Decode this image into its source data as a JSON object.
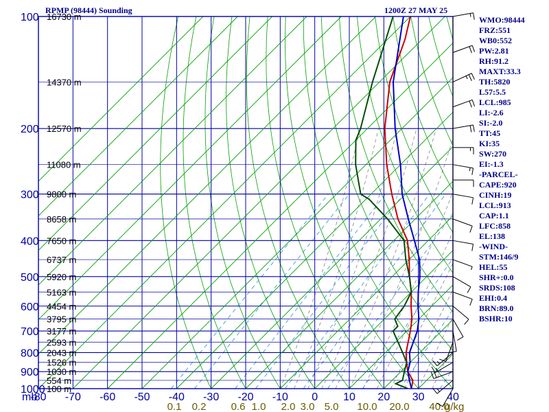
{
  "header": {
    "station": "RPMP (98444) Sounding",
    "time": "1200Z 27 MAY 25"
  },
  "stats": [
    "WMO:98444",
    "FRZ:551",
    "WB0:552",
    "PW:2.81",
    "RH:91.2",
    "MAXT:33.3",
    "TH:5820",
    "L57:5.5",
    "LCL:985",
    "LI:-2.6",
    "SI:-2.0",
    "TT:45",
    "KI:35",
    "SW:270",
    "EI:-1.3",
    "-PARCEL-",
    "CAPE:920",
    "CINH:19",
    "LCL:913",
    "CAP:1.1",
    "LFC:858",
    "EL:138",
    "-WIND-",
    "STM:146/9",
    "HEL:55",
    "SHR+:0.0",
    "SRDS:108",
    "EHI:0.4",
    "BRN:89.0",
    "BSHR:10"
  ],
  "colors": {
    "grid": "#0000aa",
    "dry_adiabat": "#00a000",
    "moist_adiabat": "#1a1a1a",
    "mixing_ratio": "#2a8fd0",
    "temperature": "#cc0000",
    "dewpoint": "#004d00",
    "parcel": "#0000cc",
    "mixing_label": "#6b5a00",
    "wind": "#000000"
  },
  "chart_data": {
    "type": "skew-t",
    "xlim": [
      -80,
      40
    ],
    "xlabel": "mb",
    "pressure_axis": [
      100,
      1000
    ],
    "pressure_ticks": [
      "100",
      "200",
      "300",
      "400",
      "500",
      "600",
      "700",
      "800",
      "900",
      "1000"
    ],
    "temperature_ticks": [
      "-80",
      "-70",
      "-60",
      "-50",
      "-40",
      "-30",
      "-20",
      "-10",
      "0",
      "10",
      "20",
      "30",
      "40"
    ],
    "mixing_ratio_labels": [
      "0.1",
      "0.2",
      "0.6",
      "1.0",
      "2.0",
      "3.0",
      "5.0",
      "10.0",
      "20.0",
      "40.0"
    ],
    "mixing_ratio_unit": "g/kg",
    "height_labels": [
      {
        "p": 100,
        "text": "16730 m"
      },
      {
        "p": 150,
        "text": "14370 m"
      },
      {
        "p": 200,
        "text": "12570 m"
      },
      {
        "p": 250,
        "text": "11080 m"
      },
      {
        "p": 300,
        "text": "9800 m"
      },
      {
        "p": 350,
        "text": "8658 m"
      },
      {
        "p": 400,
        "text": "7650 m"
      },
      {
        "p": 450,
        "text": "6737 m"
      },
      {
        "p": 500,
        "text": "5920 m"
      },
      {
        "p": 550,
        "text": "5163 m"
      },
      {
        "p": 600,
        "text": "4454 m"
      },
      {
        "p": 650,
        "text": "3795 m"
      },
      {
        "p": 700,
        "text": "3177 m"
      },
      {
        "p": 750,
        "text": "2593 m"
      },
      {
        "p": 800,
        "text": "2043 m"
      },
      {
        "p": 850,
        "text": "1526 m"
      },
      {
        "p": 900,
        "text": "1030 m"
      },
      {
        "p": 950,
        "text": "554 m"
      },
      {
        "p": 1000,
        "text": "100 m"
      }
    ],
    "series": [
      {
        "key": "temperature",
        "points": [
          [
            100,
            -80
          ],
          [
            115,
            -75
          ],
          [
            150,
            -67
          ],
          [
            200,
            -55
          ],
          [
            250,
            -44
          ],
          [
            300,
            -34
          ],
          [
            350,
            -25
          ],
          [
            400,
            -16
          ],
          [
            450,
            -10
          ],
          [
            500,
            -5
          ],
          [
            550,
            0
          ],
          [
            600,
            4
          ],
          [
            650,
            8
          ],
          [
            700,
            11
          ],
          [
            800,
            16
          ],
          [
            850,
            19
          ],
          [
            900,
            22
          ],
          [
            950,
            26
          ],
          [
            1000,
            28
          ]
        ]
      },
      {
        "key": "dewpoint",
        "points": [
          [
            100,
            -85
          ],
          [
            150,
            -72
          ],
          [
            200,
            -62
          ],
          [
            215,
            -60
          ],
          [
            250,
            -53
          ],
          [
            300,
            -43
          ],
          [
            310,
            -39
          ],
          [
            350,
            -28
          ],
          [
            400,
            -17
          ],
          [
            450,
            -11
          ],
          [
            500,
            -5
          ],
          [
            550,
            0
          ],
          [
            600,
            2
          ],
          [
            650,
            3
          ],
          [
            680,
            6
          ],
          [
            700,
            6
          ],
          [
            800,
            15
          ],
          [
            850,
            19
          ],
          [
            900,
            21
          ],
          [
            950,
            23
          ],
          [
            970,
            22
          ],
          [
            1000,
            27
          ]
        ]
      },
      {
        "key": "parcel",
        "points": [
          [
            100,
            -82
          ],
          [
            150,
            -66
          ],
          [
            200,
            -52
          ],
          [
            250,
            -40
          ],
          [
            300,
            -31
          ],
          [
            350,
            -22
          ],
          [
            400,
            -14
          ],
          [
            450,
            -7
          ],
          [
            500,
            -2
          ],
          [
            550,
            2
          ],
          [
            600,
            6
          ],
          [
            650,
            10
          ],
          [
            700,
            13
          ],
          [
            800,
            17
          ],
          [
            850,
            20
          ],
          [
            900,
            22
          ],
          [
            950,
            25
          ],
          [
            1000,
            28
          ]
        ]
      }
    ],
    "wind_barbs": [
      {
        "p": 100,
        "dir": 80,
        "spd": 15
      },
      {
        "p": 125,
        "dir": 70,
        "spd": 20
      },
      {
        "p": 150,
        "dir": 65,
        "spd": 25
      },
      {
        "p": 175,
        "dir": 70,
        "spd": 20
      },
      {
        "p": 200,
        "dir": 80,
        "spd": 20
      },
      {
        "p": 225,
        "dir": 90,
        "spd": 15
      },
      {
        "p": 250,
        "dir": 100,
        "spd": 15
      },
      {
        "p": 275,
        "dir": 90,
        "spd": 10
      },
      {
        "p": 300,
        "dir": 100,
        "spd": 10
      },
      {
        "p": 350,
        "dir": 110,
        "spd": 10
      },
      {
        "p": 400,
        "dir": 100,
        "spd": 10
      },
      {
        "p": 450,
        "dir": 110,
        "spd": 5
      },
      {
        "p": 500,
        "dir": 120,
        "spd": 10
      },
      {
        "p": 550,
        "dir": 110,
        "spd": 10
      },
      {
        "p": 600,
        "dir": 130,
        "spd": 10
      },
      {
        "p": 650,
        "dir": 150,
        "spd": 10
      },
      {
        "p": 700,
        "dir": 170,
        "spd": 10
      },
      {
        "p": 750,
        "dir": 200,
        "spd": 10
      },
      {
        "p": 800,
        "dir": 230,
        "spd": 15
      },
      {
        "p": 850,
        "dir": 240,
        "spd": 15
      },
      {
        "p": 900,
        "dir": 250,
        "spd": 20
      },
      {
        "p": 950,
        "dir": 230,
        "spd": 15
      },
      {
        "p": 1000,
        "dir": 210,
        "spd": 10
      }
    ]
  }
}
